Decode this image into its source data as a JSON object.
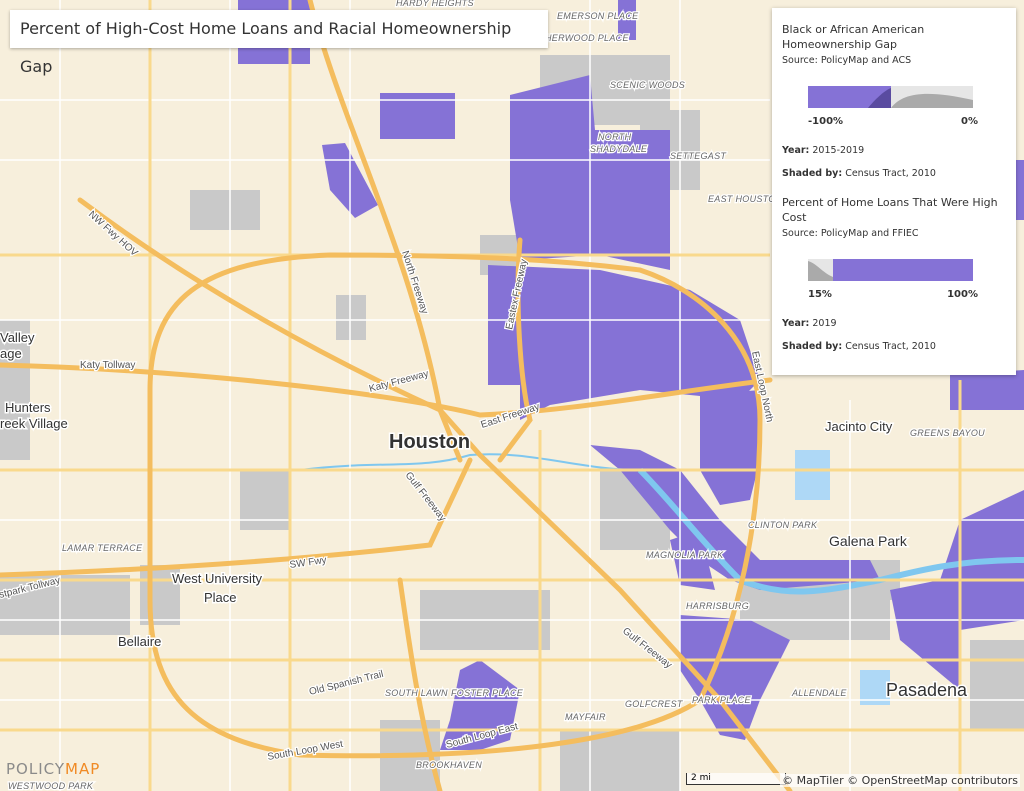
{
  "header": {
    "title": "Percent of High-Cost Home Loans and Racial Homeownership Gap"
  },
  "legend": {
    "layers": [
      {
        "title": "Black or African American Homeownership Gap",
        "source": "Source: PolicyMap and ACS",
        "min_label": "-100%",
        "max_label": "0%",
        "year_label": "Year:",
        "year": "2015-2019",
        "shaded_label": "Shaded by:",
        "shaded": "Census Tract, 2010"
      },
      {
        "title": "Percent of Home Loans That Were High Cost",
        "source": "Source: PolicyMap and FFIEC",
        "min_label": "15%",
        "max_label": "100%",
        "year_label": "Year:",
        "year": "2019",
        "shaded_label": "Shaded by:",
        "shaded": "Census Tract, 2010"
      }
    ]
  },
  "place_labels": [
    "Houston",
    "Jacinto City",
    "Galena Park",
    "Pasadena",
    "West University",
    "Place",
    "Bellaire",
    "Hunters",
    "reek Village",
    "Valley",
    "age"
  ],
  "neighborhood_labels": [
    "HARDY HEIGHTS",
    "EMERSON PLACE",
    "HERWOOD PLACE",
    "SCENIC WOODS",
    "NORTH",
    "SHADYDALE",
    "SETTEGAST",
    "EAST HOUSTO",
    "CLINTON PARK",
    "GREENS BAYOU",
    "MAGNOLIA PARK",
    "HARRISBURG",
    "PARK PLACE",
    "ALLENDALE",
    "GOLFCREST",
    "SOUTH LAWN",
    "FOSTER PLACE",
    "MAYFAIR",
    "BROOKHAVEN",
    "WESTWOOD PARK",
    "LAMAR TERRACE"
  ],
  "road_labels": [
    "NW Fwy HOV",
    "Katy Tollway",
    "Katy Freeway",
    "North Freeway",
    "Eastex Freeway",
    "East Freeway",
    "Gulf Freeway",
    "SW Fwy",
    "stpark Tollway",
    "Old Spanish Trail",
    "South Loop West",
    "South Loop East",
    "Gulf Freeway",
    "East Loop North"
  ],
  "footer": {
    "logo_a": "POLICY",
    "logo_b": "MAP",
    "scale": "2 mi",
    "attribution": "© MapTiler © OpenStreetMap contributors"
  }
}
